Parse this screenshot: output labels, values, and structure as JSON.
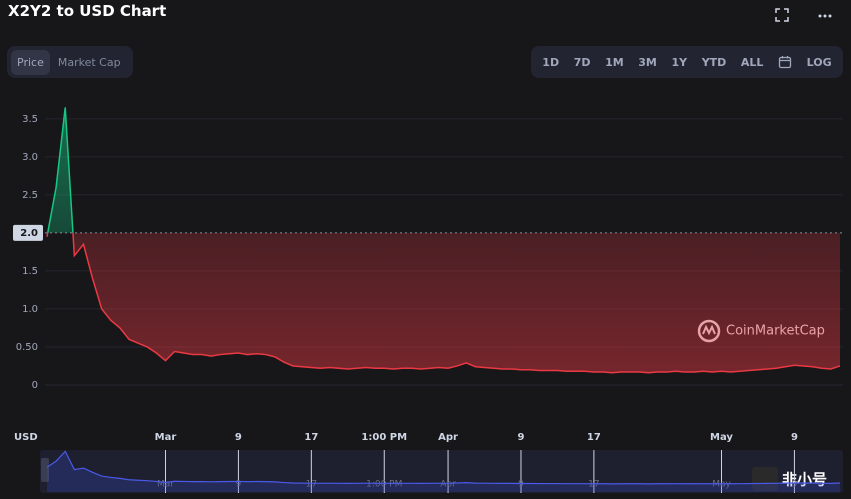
{
  "chart_data": {
    "type": "line",
    "title": "X2Y2 to USD Chart",
    "toggles": [
      "Price",
      "Market Cap"
    ],
    "ranges": [
      "1D",
      "7D",
      "1M",
      "3M",
      "1Y",
      "YTD",
      "ALL"
    ],
    "log_button": "LOG",
    "y_label": "USD",
    "watermark": "CoinMarketCap",
    "badge": "非小号",
    "baseline": 2,
    "up_color": "#16c784",
    "down_color": "#ea3943",
    "ylim": [
      -0.5,
      3.8
    ],
    "yticks": [
      0,
      {
        "value": 0.5,
        "label": "0.50"
      },
      {
        "value": 1,
        "label": "1.0"
      },
      1.5,
      {
        "value": 2,
        "label": "2.0"
      },
      2.5,
      {
        "value": 3,
        "label": "3.0"
      },
      3.5
    ],
    "grid": true,
    "categories": [
      null,
      null,
      null,
      null,
      null,
      null,
      null,
      null,
      null,
      null,
      null,
      null,
      null,
      "Mar",
      null,
      null,
      null,
      null,
      null,
      null,
      null,
      "9",
      null,
      null,
      null,
      null,
      null,
      null,
      null,
      "17",
      null,
      null,
      null,
      null,
      null,
      null,
      null,
      "1:00 PM",
      null,
      null,
      null,
      null,
      null,
      null,
      "Apr",
      null,
      null,
      null,
      null,
      null,
      null,
      null,
      "9",
      null,
      null,
      null,
      null,
      null,
      null,
      null,
      "17",
      null,
      null,
      null,
      null,
      null,
      null,
      null,
      null,
      null,
      null,
      null,
      null,
      null,
      "May",
      null,
      null,
      null,
      null,
      null,
      null,
      null,
      "9",
      null,
      null,
      null,
      null,
      null
    ],
    "series": [
      {
        "name": "Price",
        "values": [
          1.95,
          2.6,
          3.65,
          1.7,
          1.85,
          1.4,
          1.0,
          0.85,
          0.75,
          0.6,
          0.55,
          0.5,
          0.42,
          0.32,
          0.44,
          0.42,
          0.4,
          0.4,
          0.38,
          0.4,
          0.41,
          0.42,
          0.4,
          0.41,
          0.4,
          0.37,
          0.3,
          0.25,
          0.24,
          0.23,
          0.22,
          0.23,
          0.22,
          0.21,
          0.22,
          0.23,
          0.22,
          0.22,
          0.21,
          0.22,
          0.22,
          0.21,
          0.22,
          0.23,
          0.22,
          0.25,
          0.29,
          0.24,
          0.23,
          0.22,
          0.21,
          0.21,
          0.2,
          0.2,
          0.19,
          0.19,
          0.19,
          0.18,
          0.18,
          0.18,
          0.17,
          0.17,
          0.16,
          0.17,
          0.17,
          0.17,
          0.16,
          0.17,
          0.17,
          0.18,
          0.17,
          0.17,
          0.18,
          0.17,
          0.18,
          0.17,
          0.18,
          0.19,
          0.2,
          0.21,
          0.22,
          0.24,
          0.26,
          0.25,
          0.24,
          0.22,
          0.21,
          0.25
        ]
      }
    ]
  }
}
